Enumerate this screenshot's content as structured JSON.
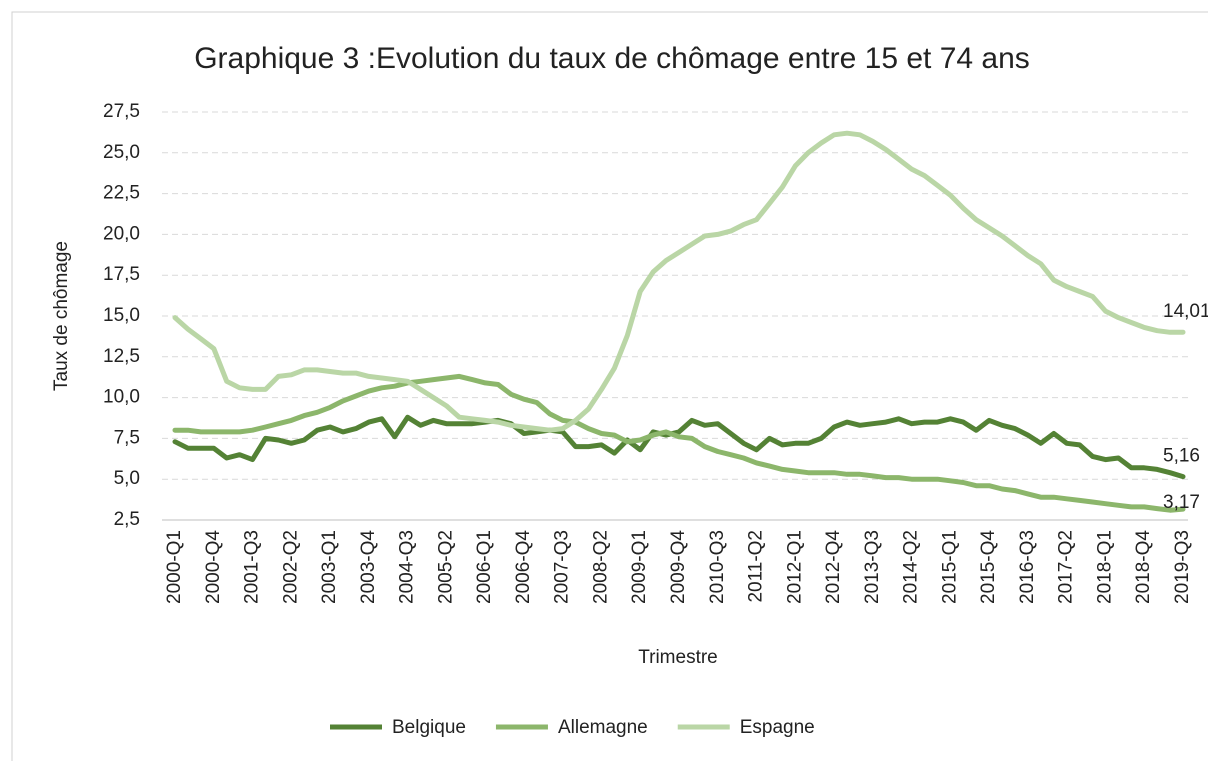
{
  "chart_data": {
    "type": "line",
    "title": "Graphique 3 :Evolution du taux de chômage entre 15 et 74 ans",
    "x_label": "Trimestre",
    "y_label": "Taux de chômage",
    "categories": [
      "2000-Q1",
      null,
      null,
      "2000-Q4",
      null,
      null,
      "2001-Q3",
      null,
      null,
      "2002-Q2",
      null,
      null,
      "2003-Q1",
      null,
      null,
      "2003-Q4",
      null,
      null,
      "2004-Q3",
      null,
      null,
      "2005-Q2",
      null,
      null,
      "2006-Q1",
      null,
      null,
      "2006-Q4",
      null,
      null,
      "2007-Q3",
      null,
      null,
      "2008-Q2",
      null,
      null,
      "2009-Q1",
      null,
      null,
      "2009-Q4",
      null,
      null,
      "2010-Q3",
      null,
      null,
      "2011-Q2",
      null,
      null,
      "2012-Q1",
      null,
      null,
      "2012-Q4",
      null,
      null,
      "2013-Q3",
      null,
      null,
      "2014-Q2",
      null,
      null,
      "2015-Q1",
      null,
      null,
      "2015-Q4",
      null,
      null,
      "2016-Q3",
      null,
      null,
      "2017-Q2",
      null,
      null,
      "2018-Q1",
      null,
      null,
      "2018-Q4",
      null,
      null,
      "2019-Q3"
    ],
    "series": [
      {
        "name": "Belgique",
        "color": "#548235",
        "values": [
          7.3,
          6.9,
          6.9,
          6.9,
          6.3,
          6.5,
          6.2,
          7.5,
          7.4,
          7.2,
          7.4,
          8.0,
          8.2,
          7.9,
          8.1,
          8.5,
          8.7,
          7.6,
          8.8,
          8.3,
          8.6,
          8.4,
          8.4,
          8.4,
          8.5,
          8.6,
          8.4,
          7.8,
          7.9,
          8.0,
          7.9,
          7.0,
          7.0,
          7.1,
          6.6,
          7.4,
          6.8,
          7.9,
          7.7,
          7.9,
          8.6,
          8.3,
          8.4,
          7.8,
          7.2,
          6.8,
          7.5,
          7.1,
          7.2,
          7.2,
          7.5,
          8.2,
          8.5,
          8.3,
          8.4,
          8.5,
          8.7,
          8.4,
          8.5,
          8.5,
          8.7,
          8.5,
          8.0,
          8.6,
          8.3,
          8.1,
          7.7,
          7.2,
          7.8,
          7.2,
          7.1,
          6.4,
          6.2,
          6.3,
          5.7,
          5.7,
          5.6,
          5.4,
          5.16
        ],
        "value_labels": [
          null,
          null,
          null,
          null,
          null,
          null,
          null,
          null,
          null,
          null,
          null,
          null,
          null,
          null,
          null,
          null,
          null,
          null,
          null,
          null,
          null,
          null,
          null,
          null,
          null,
          null,
          null,
          null,
          null,
          null,
          null,
          null,
          null,
          null,
          null,
          null,
          null,
          null,
          null,
          null,
          null,
          null,
          null,
          null,
          null,
          null,
          null,
          null,
          null,
          null,
          null,
          null,
          null,
          null,
          null,
          null,
          null,
          null,
          null,
          null,
          null,
          null,
          null,
          null,
          null,
          null,
          null,
          null,
          null,
          null,
          null,
          null,
          null,
          null,
          null,
          null,
          null,
          null,
          "5,16"
        ]
      },
      {
        "name": "Allemagne",
        "color": "#8cb66b",
        "values": [
          8.0,
          8.0,
          7.9,
          7.9,
          7.9,
          7.9,
          8.0,
          8.2,
          8.4,
          8.6,
          8.9,
          9.1,
          9.4,
          9.8,
          10.1,
          10.4,
          10.6,
          10.7,
          10.9,
          11.0,
          11.1,
          11.2,
          11.3,
          11.1,
          10.9,
          10.8,
          10.2,
          9.9,
          9.7,
          9.0,
          8.6,
          8.5,
          8.1,
          7.8,
          7.7,
          7.3,
          7.4,
          7.7,
          7.9,
          7.6,
          7.5,
          7.0,
          6.7,
          6.5,
          6.3,
          6.0,
          5.8,
          5.6,
          5.5,
          5.4,
          5.4,
          5.4,
          5.3,
          5.3,
          5.2,
          5.1,
          5.1,
          5.0,
          5.0,
          5.0,
          4.9,
          4.8,
          4.6,
          4.6,
          4.4,
          4.3,
          4.1,
          3.9,
          3.9,
          3.8,
          3.7,
          3.6,
          3.5,
          3.4,
          3.3,
          3.3,
          3.2,
          3.1,
          3.17
        ],
        "value_labels": [
          null,
          null,
          null,
          null,
          null,
          null,
          null,
          null,
          null,
          null,
          null,
          null,
          null,
          null,
          null,
          null,
          null,
          null,
          null,
          null,
          null,
          null,
          null,
          null,
          null,
          null,
          null,
          null,
          null,
          null,
          null,
          null,
          null,
          null,
          null,
          null,
          null,
          null,
          null,
          null,
          null,
          null,
          null,
          null,
          null,
          null,
          null,
          null,
          null,
          null,
          null,
          null,
          null,
          null,
          null,
          null,
          null,
          null,
          null,
          null,
          null,
          null,
          null,
          null,
          null,
          null,
          null,
          null,
          null,
          null,
          null,
          null,
          null,
          null,
          null,
          null,
          null,
          null,
          "3,17"
        ]
      },
      {
        "name": "Espagne",
        "color": "#bad6a6",
        "values": [
          14.9,
          14.2,
          13.6,
          13.0,
          11.0,
          10.6,
          10.5,
          10.5,
          11.3,
          11.4,
          11.7,
          11.7,
          11.6,
          11.5,
          11.5,
          11.3,
          11.2,
          11.1,
          11.0,
          10.5,
          10.0,
          9.5,
          8.8,
          8.7,
          8.6,
          8.5,
          8.3,
          8.2,
          8.1,
          8.0,
          8.1,
          8.6,
          9.3,
          10.5,
          11.8,
          13.8,
          16.5,
          17.7,
          18.4,
          18.9,
          19.4,
          19.9,
          20.0,
          20.2,
          20.6,
          20.9,
          21.9,
          22.9,
          24.2,
          25.0,
          25.6,
          26.1,
          26.2,
          26.1,
          25.7,
          25.2,
          24.6,
          24.0,
          23.6,
          23.0,
          22.4,
          21.6,
          20.9,
          20.4,
          19.9,
          19.3,
          18.7,
          18.2,
          17.2,
          16.8,
          16.5,
          16.2,
          15.3,
          14.9,
          14.6,
          14.3,
          14.1,
          14.0,
          14.01
        ],
        "value_labels": [
          null,
          null,
          null,
          null,
          null,
          null,
          null,
          null,
          null,
          null,
          null,
          null,
          null,
          null,
          null,
          null,
          null,
          null,
          null,
          null,
          null,
          null,
          null,
          null,
          null,
          null,
          null,
          null,
          null,
          null,
          null,
          null,
          null,
          null,
          null,
          null,
          null,
          null,
          null,
          null,
          null,
          null,
          null,
          null,
          null,
          null,
          null,
          null,
          null,
          null,
          null,
          null,
          null,
          null,
          null,
          null,
          null,
          null,
          null,
          null,
          null,
          null,
          null,
          null,
          null,
          null,
          null,
          null,
          null,
          null,
          null,
          null,
          null,
          null,
          null,
          null,
          null,
          null,
          "14,01"
        ]
      }
    ],
    "ylim": [
      2.5,
      27.5
    ],
    "yticks": [
      {
        "value": 2.5,
        "label": "2,5"
      },
      {
        "value": 5,
        "label": "5,0"
      },
      {
        "value": 7.5,
        "label": "7,5"
      },
      {
        "value": 10,
        "label": "10,0"
      },
      {
        "value": 12.5,
        "label": "12,5"
      },
      {
        "value": 15,
        "label": "15,0"
      },
      {
        "value": 17.5,
        "label": "17,5"
      },
      {
        "value": 20,
        "label": "20,0"
      },
      {
        "value": 22.5,
        "label": "22,5"
      },
      {
        "value": 25,
        "label": "25,0"
      },
      {
        "value": 27.5,
        "label": "27,5"
      }
    ],
    "grid": true,
    "legend": "bottom"
  }
}
